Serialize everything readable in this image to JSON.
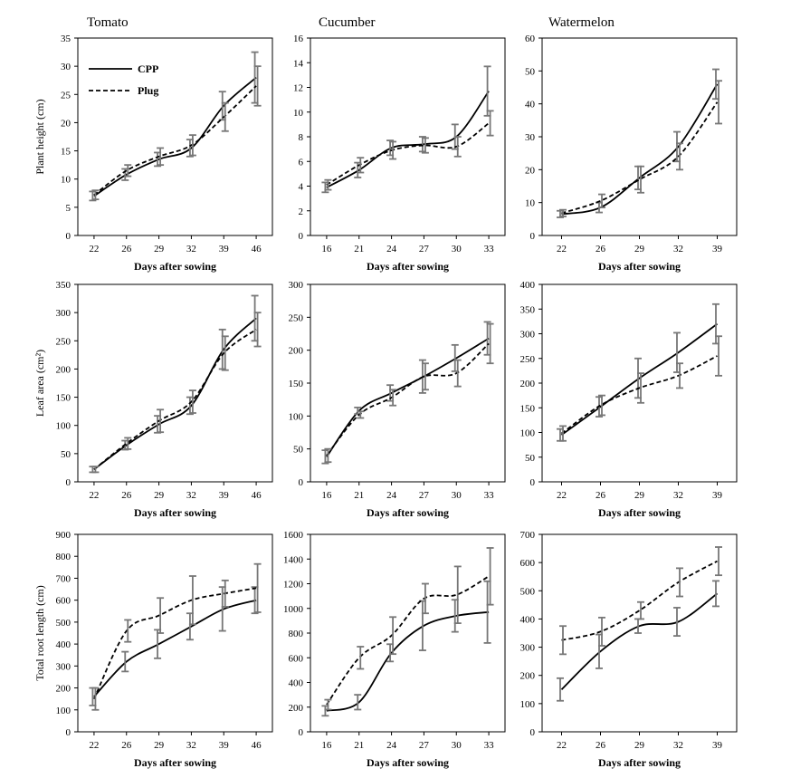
{
  "columns": [
    "Tomato",
    "Cucumber",
    "Watermelon"
  ],
  "legend": [
    "CPP",
    "Plug"
  ],
  "chart_data": [
    {
      "type": "line",
      "crop": "Tomato",
      "ylabel": "Plant height (cm)",
      "xlabel": "Days after sowing",
      "categories": [
        "22",
        "26",
        "29",
        "32",
        "39",
        "46"
      ],
      "yticks": [
        0,
        5,
        10,
        15,
        20,
        25,
        30,
        35
      ],
      "ylim": [
        0,
        35
      ],
      "series": [
        {
          "name": "CPP",
          "values": [
            7.0,
            10.8,
            13.5,
            15.5,
            23.0,
            28.0
          ],
          "err": [
            0.8,
            1.0,
            1.2,
            1.5,
            2.5,
            4.5
          ]
        },
        {
          "name": "Plug",
          "values": [
            7.2,
            11.5,
            14.0,
            16.0,
            21.0,
            26.5
          ],
          "err": [
            0.8,
            1.0,
            1.5,
            1.8,
            2.5,
            3.5
          ]
        }
      ]
    },
    {
      "type": "line",
      "crop": "Cucumber",
      "ylabel": "",
      "xlabel": "Days after sowing",
      "categories": [
        "16",
        "21",
        "24",
        "27",
        "30",
        "33"
      ],
      "yticks": [
        0,
        2,
        4,
        6,
        8,
        10,
        12,
        14,
        16
      ],
      "ylim": [
        0,
        16
      ],
      "series": [
        {
          "name": "CPP",
          "values": [
            3.9,
            5.3,
            7.1,
            7.4,
            8.0,
            11.7
          ],
          "err": [
            0.4,
            0.6,
            0.6,
            0.6,
            1.0,
            2.0
          ]
        },
        {
          "name": "Plug",
          "values": [
            4.1,
            5.7,
            6.9,
            7.3,
            7.2,
            9.1
          ],
          "err": [
            0.4,
            0.6,
            0.7,
            0.6,
            0.8,
            1.0
          ]
        }
      ]
    },
    {
      "type": "line",
      "crop": "Watermelon",
      "ylabel": "",
      "xlabel": "Days after sowing",
      "categories": [
        "22",
        "26",
        "29",
        "32",
        "39"
      ],
      "yticks": [
        0,
        10,
        20,
        30,
        40,
        50,
        60
      ],
      "ylim": [
        0,
        60
      ],
      "series": [
        {
          "name": "CPP",
          "values": [
            6.5,
            8.5,
            17.5,
            27.0,
            46.0
          ],
          "err": [
            1.0,
            1.5,
            3.5,
            4.5,
            4.5
          ]
        },
        {
          "name": "Plug",
          "values": [
            6.8,
            10.5,
            17.0,
            24.0,
            40.5
          ],
          "err": [
            1.0,
            2.0,
            4.0,
            4.0,
            6.5
          ]
        }
      ]
    },
    {
      "type": "line",
      "crop": "Tomato",
      "ylabel": "Leaf area (cm²)",
      "xlabel": "Days after sowing",
      "categories": [
        "22",
        "26",
        "29",
        "32",
        "39",
        "46"
      ],
      "yticks": [
        0,
        50,
        100,
        150,
        200,
        250,
        300,
        350
      ],
      "ylim": [
        0,
        350
      ],
      "series": [
        {
          "name": "CPP",
          "values": [
            22,
            65,
            102,
            135,
            235,
            290
          ],
          "err": [
            5,
            8,
            15,
            15,
            35,
            40
          ]
        },
        {
          "name": "Plug",
          "values": [
            22,
            68,
            108,
            142,
            228,
            270
          ],
          "err": [
            5,
            10,
            20,
            20,
            30,
            30
          ]
        }
      ]
    },
    {
      "type": "line",
      "crop": "Cucumber",
      "ylabel": "",
      "xlabel": "Days after sowing",
      "categories": [
        "16",
        "21",
        "24",
        "27",
        "30",
        "33"
      ],
      "yticks": [
        0,
        50,
        100,
        150,
        200,
        250,
        300
      ],
      "ylim": [
        0,
        300
      ],
      "series": [
        {
          "name": "CPP",
          "values": [
            38,
            108,
            135,
            160,
            188,
            218
          ],
          "err": [
            10,
            5,
            12,
            25,
            20,
            25
          ]
        },
        {
          "name": "Plug",
          "values": [
            40,
            102,
            128,
            160,
            165,
            210
          ],
          "err": [
            10,
            5,
            12,
            20,
            20,
            30
          ]
        }
      ]
    },
    {
      "type": "line",
      "crop": "Watermelon",
      "ylabel": "",
      "xlabel": "Days after sowing",
      "categories": [
        "22",
        "26",
        "29",
        "32",
        "39"
      ],
      "yticks": [
        0,
        50,
        100,
        150,
        200,
        250,
        300,
        350,
        400
      ],
      "ylim": [
        0,
        400
      ],
      "series": [
        {
          "name": "CPP",
          "values": [
            95,
            152,
            210,
            262,
            320
          ],
          "err": [
            12,
            20,
            40,
            40,
            40
          ]
        },
        {
          "name": "Plug",
          "values": [
            98,
            155,
            190,
            215,
            255
          ],
          "err": [
            15,
            20,
            30,
            25,
            40
          ]
        }
      ]
    },
    {
      "type": "line",
      "crop": "Tomato",
      "ylabel": "Total root length (cm)",
      "xlabel": "Days after sowing",
      "categories": [
        "22",
        "26",
        "29",
        "32",
        "39",
        "46"
      ],
      "yticks": [
        0,
        100,
        200,
        300,
        400,
        500,
        600,
        700,
        800,
        900
      ],
      "ylim": [
        0,
        900
      ],
      "series": [
        {
          "name": "CPP",
          "values": [
            160,
            320,
            400,
            480,
            560,
            600
          ],
          "err": [
            40,
            45,
            65,
            60,
            100,
            60
          ]
        },
        {
          "name": "Plug",
          "values": [
            150,
            460,
            530,
            600,
            630,
            655
          ],
          "err": [
            50,
            50,
            80,
            110,
            60,
            110
          ]
        }
      ]
    },
    {
      "type": "line",
      "crop": "Cucumber",
      "ylabel": "",
      "xlabel": "Days after sowing",
      "categories": [
        "16",
        "21",
        "24",
        "27",
        "30",
        "33"
      ],
      "yticks": [
        0,
        200,
        400,
        600,
        800,
        1000,
        1200,
        1400,
        1600
      ],
      "ylim": [
        0,
        1600
      ],
      "series": [
        {
          "name": "CPP",
          "values": [
            170,
            240,
            640,
            860,
            940,
            970
          ],
          "err": [
            40,
            60,
            70,
            200,
            130,
            250
          ]
        },
        {
          "name": "Plug",
          "values": [
            220,
            600,
            780,
            1080,
            1110,
            1260
          ],
          "err": [
            40,
            90,
            150,
            120,
            230,
            230
          ]
        }
      ]
    },
    {
      "type": "line",
      "crop": "Watermelon",
      "ylabel": "",
      "xlabel": "Days after sowing",
      "categories": [
        "22",
        "26",
        "29",
        "32",
        "39"
      ],
      "yticks": [
        0,
        100,
        200,
        300,
        400,
        500,
        600,
        700
      ],
      "ylim": [
        0,
        700
      ],
      "series": [
        {
          "name": "CPP",
          "values": [
            150,
            285,
            375,
            390,
            490
          ],
          "err": [
            40,
            60,
            25,
            50,
            45
          ]
        },
        {
          "name": "Plug",
          "values": [
            325,
            355,
            430,
            530,
            605
          ],
          "err": [
            50,
            50,
            30,
            50,
            50
          ]
        }
      ]
    }
  ]
}
